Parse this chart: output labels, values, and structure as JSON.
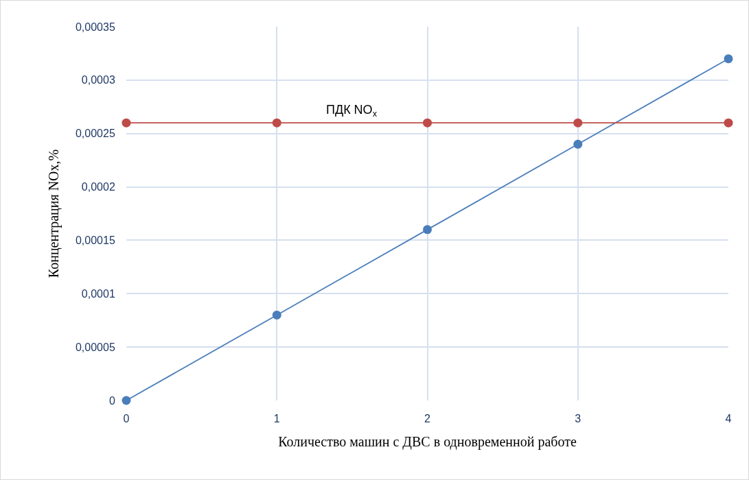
{
  "chart_data": {
    "type": "line",
    "xlabel": "Количество машин с ДВС в одновременной работе",
    "ylabel": "Концентрация NOx,%",
    "x": [
      0,
      1,
      2,
      3,
      4
    ],
    "series": [
      {
        "color": "#4a7ebb",
        "values": [
          0,
          8e-05,
          0.00016,
          0.00024,
          0.00032
        ]
      },
      {
        "name": "ПДК NO$_{x}$",
        "color": "#be4b48",
        "values": [
          0.00026,
          0.00026,
          0.00026,
          0.00026,
          0.00026
        ]
      }
    ],
    "xlim": [
      0,
      4
    ],
    "xticks": [
      0,
      1,
      2,
      3,
      4
    ],
    "ylim": [
      0,
      0.00035
    ],
    "yticks": [
      0,
      {
        "value": 5e-05,
        "label": "0,00005"
      },
      {
        "value": 0.0001,
        "label": "0,0001"
      },
      {
        "value": 0.00015,
        "label": "0,00015"
      },
      {
        "value": 0.0002,
        "label": "0,0002"
      },
      {
        "value": 0.00025,
        "label": "0,00025"
      },
      {
        "value": 0.0003,
        "label": "0,0003"
      },
      {
        "value": 0.00035,
        "label": "0,00035"
      }
    ],
    "grid": true,
    "legend": false,
    "marker": "circle",
    "line_style": "solid"
  }
}
